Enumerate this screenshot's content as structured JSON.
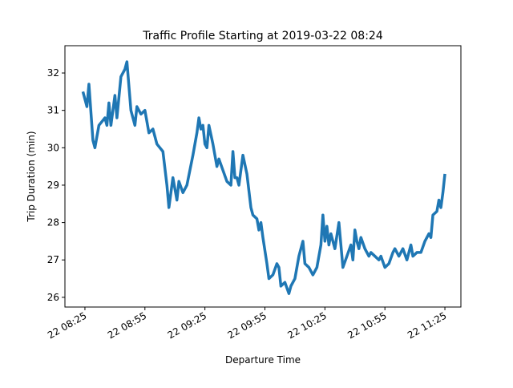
{
  "chart_data": {
    "type": "line",
    "title": "Traffic Profile Starting at 2019-03-22 08:24",
    "x_label": "Departure Time",
    "y_label": "Trip Duration (min)",
    "color": "#1f77b4",
    "x": [
      "22 08:24",
      "22 08:26",
      "22 08:27",
      "22 08:29",
      "22 08:30",
      "22 08:32",
      "22 08:35",
      "22 08:36",
      "22 08:37",
      "22 08:38",
      "22 08:40",
      "22 08:41",
      "22 08:43",
      "22 08:45",
      "22 08:46",
      "22 08:48",
      "22 08:50",
      "22 08:51",
      "22 08:53",
      "22 08:55",
      "22 08:57",
      "22 08:59",
      "22 09:01",
      "22 09:04",
      "22 09:06",
      "22 09:07",
      "22 09:09",
      "22 09:11",
      "22 09:12",
      "22 09:14",
      "22 09:16",
      "22 09:19",
      "22 09:21",
      "22 09:22",
      "22 09:23",
      "22 09:24",
      "22 09:25",
      "22 09:26",
      "22 09:27",
      "22 09:29",
      "22 09:31",
      "22 09:32",
      "22 09:34",
      "22 09:36",
      "22 09:38",
      "22 09:39",
      "22 09:40",
      "22 09:41",
      "22 09:42",
      "22 09:44",
      "22 09:46",
      "22 09:48",
      "22 09:49",
      "22 09:51",
      "22 09:52",
      "22 09:53",
      "22 09:54",
      "22 09:56",
      "22 09:57",
      "22 09:59",
      "22 10:01",
      "22 10:02",
      "22 10:03",
      "22 10:05",
      "22 10:07",
      "22 10:08",
      "22 10:10",
      "22 10:12",
      "22 10:14",
      "22 10:15",
      "22 10:17",
      "22 10:19",
      "22 10:21",
      "22 10:23",
      "22 10:24",
      "22 10:25",
      "22 10:26",
      "22 10:27",
      "22 10:28",
      "22 10:30",
      "22 10:32",
      "22 10:34",
      "22 10:36",
      "22 10:38",
      "22 10:39",
      "22 10:40",
      "22 10:41",
      "22 10:42",
      "22 10:43",
      "22 10:45",
      "22 10:47",
      "22 10:48",
      "22 10:50",
      "22 10:52",
      "22 10:53",
      "22 10:55",
      "22 10:57",
      "22 10:59",
      "22 11:00",
      "22 11:02",
      "22 11:04",
      "22 11:06",
      "22 11:08",
      "22 11:09",
      "22 11:11",
      "22 11:13",
      "22 11:15",
      "22 11:17",
      "22 11:18",
      "22 11:19",
      "22 11:21",
      "22 11:22",
      "22 11:23",
      "22 11:24",
      "22 11:25"
    ],
    "values": [
      31.5,
      31.1,
      31.7,
      30.2,
      30.0,
      30.6,
      30.8,
      30.6,
      31.2,
      30.6,
      31.4,
      30.8,
      31.9,
      32.1,
      32.3,
      31.0,
      30.6,
      31.1,
      30.9,
      31.0,
      30.4,
      30.5,
      30.1,
      29.9,
      29.0,
      28.4,
      29.2,
      28.6,
      29.1,
      28.8,
      29.0,
      29.8,
      30.4,
      30.8,
      30.5,
      30.6,
      30.1,
      30.0,
      30.6,
      30.1,
      29.5,
      29.7,
      29.4,
      29.1,
      29.0,
      29.9,
      29.2,
      29.2,
      29.0,
      29.8,
      29.3,
      28.4,
      28.2,
      28.1,
      27.8,
      28.0,
      27.6,
      26.9,
      26.5,
      26.6,
      26.9,
      26.8,
      26.3,
      26.4,
      26.1,
      26.3,
      26.5,
      27.1,
      27.5,
      26.9,
      26.8,
      26.6,
      26.8,
      27.4,
      28.2,
      27.5,
      27.9,
      27.4,
      27.7,
      27.3,
      28.0,
      26.8,
      27.1,
      27.4,
      27.0,
      27.8,
      27.5,
      27.3,
      27.6,
      27.3,
      27.1,
      27.2,
      27.1,
      27.0,
      27.1,
      26.8,
      26.9,
      27.2,
      27.3,
      27.1,
      27.3,
      27.0,
      27.4,
      27.1,
      27.2,
      27.2,
      27.5,
      27.7,
      27.6,
      28.2,
      28.3,
      28.6,
      28.4,
      28.8,
      29.3
    ],
    "xlim": [
      "22 08:15",
      "22 11:33"
    ],
    "xticks": [
      "22 08:25",
      "22 08:55",
      "22 09:25",
      "22 09:55",
      "22 10:25",
      "22 10:55",
      "22 11:25"
    ],
    "ylim": [
      25.74,
      32.73
    ],
    "yticks": [
      26,
      27,
      28,
      29,
      30,
      31,
      32
    ]
  }
}
